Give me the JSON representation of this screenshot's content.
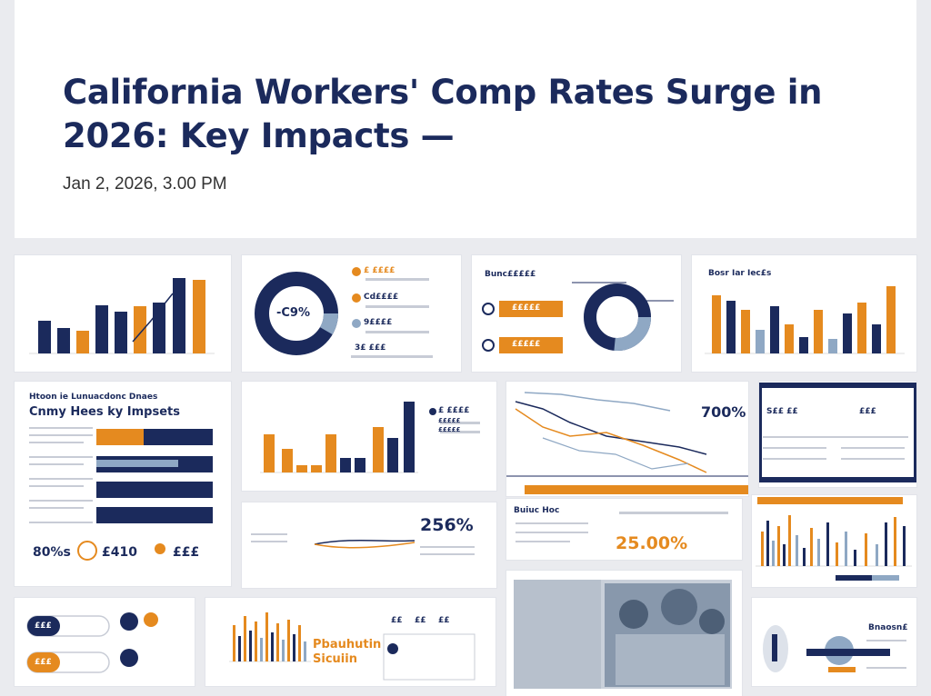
{
  "article": {
    "title": "California Workers' Comp Rates Surge in 2026: Key Impacts —",
    "date": "Jan 2, 2026, 3.00 PM"
  },
  "colors": {
    "navy": "#1b2a5c",
    "orange": "#e58a1f",
    "light_blue": "#8fa8c4",
    "background": "#eaebef"
  },
  "tiles": {
    "donut_label": "-C9%",
    "donut_list": [
      "£ ££££",
      "Cd££££",
      "9££££",
      "3£ £££"
    ],
    "orange_panel_title": "Bunc£££££",
    "orange_panel_buttons": [
      "£££££",
      "£££££"
    ],
    "bar_tile_title": "Bosr Iar Iec£s",
    "impacts_kicker": "Htoon ie Lunuacdonc Dnaes",
    "impacts_heading": "Cnmy Hees ky Impsets",
    "impacts_stats": [
      "80%s",
      "£410",
      "£££"
    ],
    "legend_mini": [
      "£ ££££",
      "£££££",
      "£££££"
    ],
    "line_chart_stat": "700%",
    "navy_panel_labels": [
      "S££ ££",
      "£££"
    ],
    "map_stat": "256%",
    "big_stat_label": "Buiuc Hoc",
    "big_stat": "25.00%",
    "bottom_pills": [
      "£££",
      "£££"
    ],
    "bottom_chart_label": "Pbauhutin Sicuiin",
    "bottom_chart_tags": [
      "££",
      "££",
      "££"
    ],
    "pin_panel_label": "Bnaosn£"
  }
}
